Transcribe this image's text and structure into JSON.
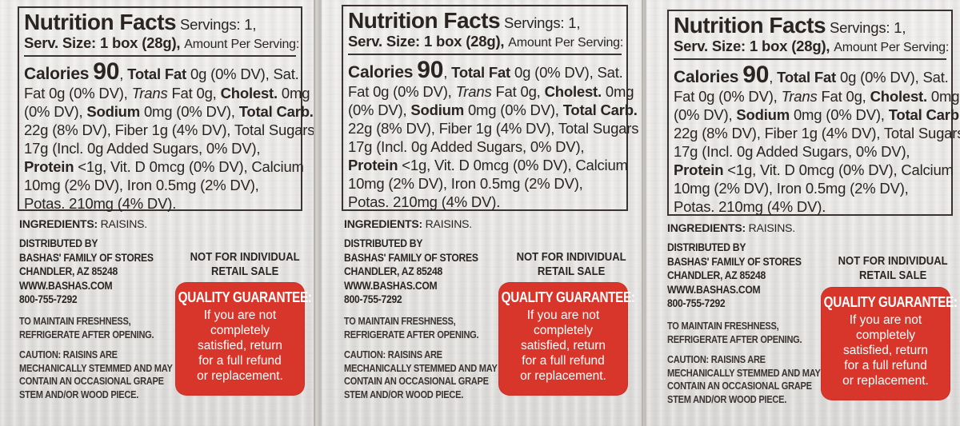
{
  "label": {
    "nutrition_title": "Nutrition Facts",
    "servings": "Servings: 1,",
    "serv_size": "Serv. Size: 1 box (28g),",
    "amount_per_serving": "Amount Per Serving:",
    "calories_label": "Calories",
    "calories_value": "90",
    "total_fat_label": "Total Fat",
    "line1_rest": "0g (0% DV), Sat.",
    "line2_a": "Fat 0g (0% DV), ",
    "trans": "Trans",
    "line2_b": " Fat 0g, ",
    "cholest_label": "Cholest.",
    "line2_c": " 0mg",
    "line3_a": "(0% DV), ",
    "sodium_label": "Sodium",
    "line3_b": " 0mg (0% DV), ",
    "total_carb_label": "Total Carb.",
    "line4": "22g (8% DV), Fiber 1g (4% DV), Total Sugars",
    "line5": "17g (Incl. 0g Added Sugars, 0% DV),",
    "protein_label": "Protein",
    "line6_rest": " <1g, Vit. D 0mcg (0% DV), Calcium",
    "line7": "10mg (2% DV), Iron 0.5mg (2% DV),",
    "line8": "Potas. 210mg (4% DV).",
    "ingredients_label": "INGREDIENTS:",
    "ingredients_value": " RAISINS.",
    "distributed_by": "DISTRIBUTED BY",
    "company": "BASHAS' FAMILY OF STORES",
    "city": "CHANDLER, AZ 85248",
    "website": "WWW.BASHAS.COM",
    "phone": "800-755-7292",
    "freshness_1": "TO MAINTAIN FRESHNESS,",
    "freshness_2": "REFRIGERATE AFTER OPENING.",
    "caution_1": "CAUTION: RAISINS ARE",
    "caution_2": "MECHANICALLY STEMMED AND MAY",
    "caution_3": "CONTAIN AN OCCASIONAL GRAPE",
    "caution_4": "STEM AND/OR WOOD PIECE.",
    "not_individual_1": "NOT FOR INDIVIDUAL",
    "not_individual_2": "RETAIL SALE",
    "guarantee_title": "QUALITY GUARANTEE:",
    "guarantee_1": "If you are not",
    "guarantee_2": "completely",
    "guarantee_3": "satisfied, return",
    "guarantee_4": "for a full refund",
    "guarantee_5": "or replacement."
  },
  "colors": {
    "guarantee_red": "#d9362b",
    "text": "#2b2522",
    "box_background": "#e8e7e5"
  }
}
